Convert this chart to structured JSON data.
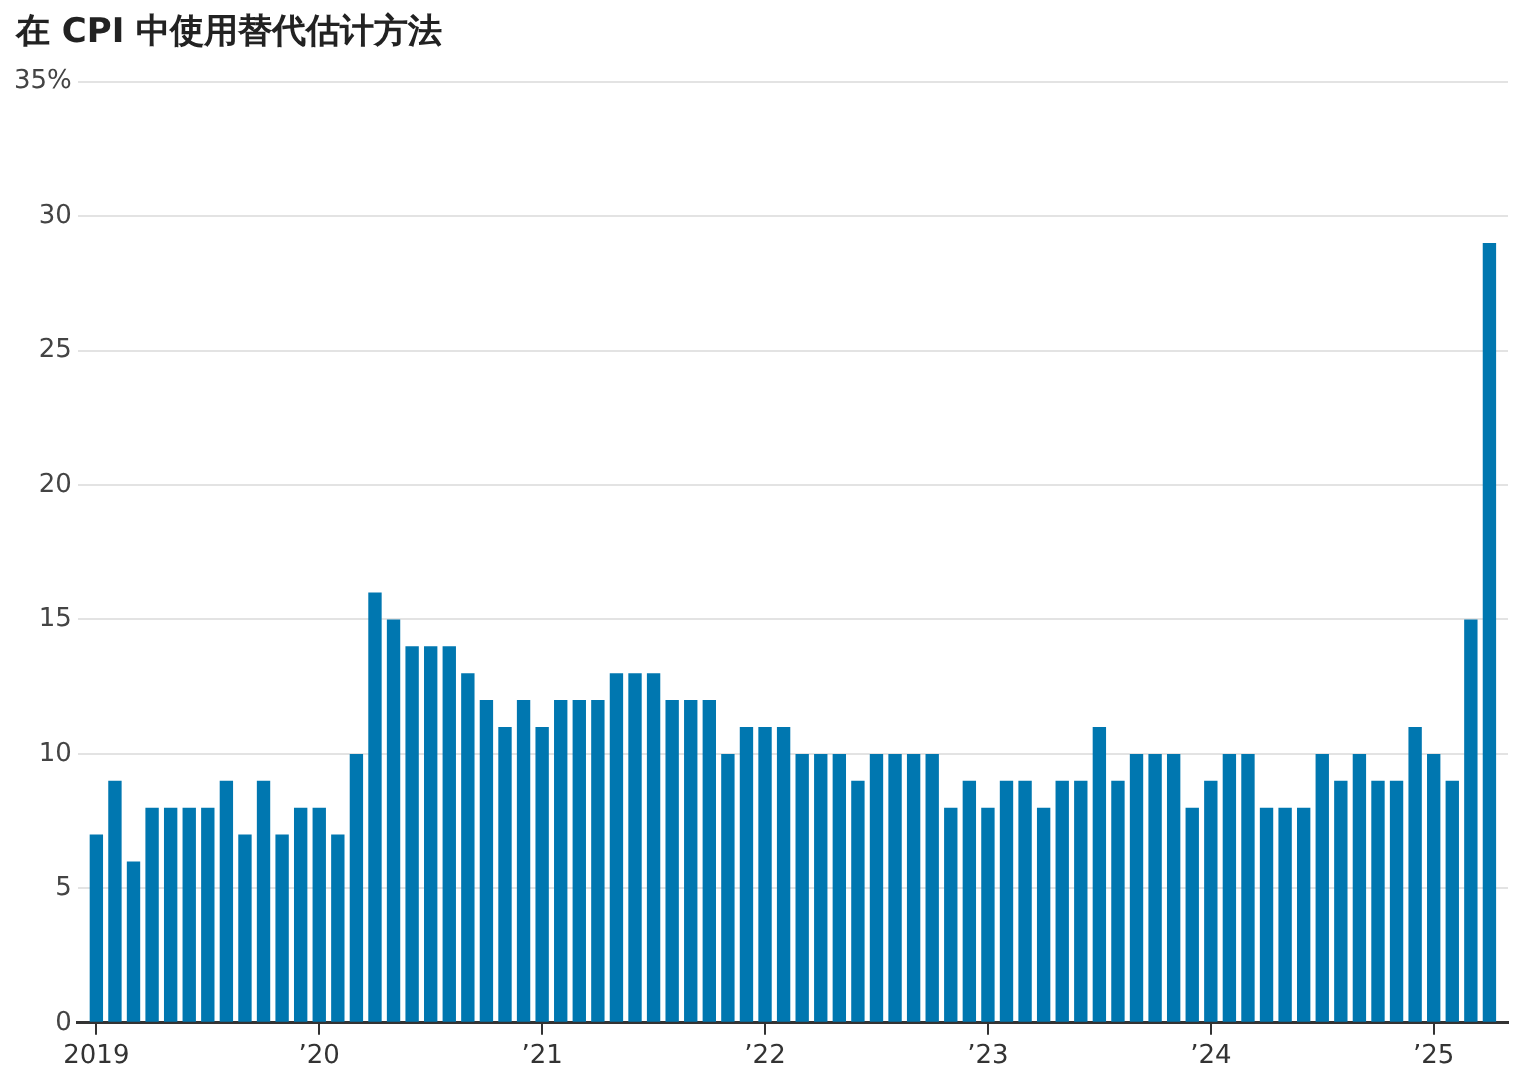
{
  "chart_data": {
    "type": "bar",
    "title": "在 CPI 中使用替代估计方法",
    "x": [
      "2019-01",
      "2019-02",
      "2019-03",
      "2019-04",
      "2019-05",
      "2019-06",
      "2019-07",
      "2019-08",
      "2019-09",
      "2019-10",
      "2019-11",
      "2019-12",
      "2020-01",
      "2020-02",
      "2020-03",
      "2020-04",
      "2020-05",
      "2020-06",
      "2020-07",
      "2020-08",
      "2020-09",
      "2020-10",
      "2020-11",
      "2020-12",
      "2021-01",
      "2021-02",
      "2021-03",
      "2021-04",
      "2021-05",
      "2021-06",
      "2021-07",
      "2021-08",
      "2021-09",
      "2021-10",
      "2021-11",
      "2021-12",
      "2022-01",
      "2022-02",
      "2022-03",
      "2022-04",
      "2022-05",
      "2022-06",
      "2022-07",
      "2022-08",
      "2022-09",
      "2022-10",
      "2022-11",
      "2022-12",
      "2023-01",
      "2023-02",
      "2023-03",
      "2023-04",
      "2023-05",
      "2023-06",
      "2023-07",
      "2023-08",
      "2023-09",
      "2023-10",
      "2023-11",
      "2023-12",
      "2024-01",
      "2024-02",
      "2024-03",
      "2024-04",
      "2024-05",
      "2024-06",
      "2024-07",
      "2024-08",
      "2024-09",
      "2024-10",
      "2024-11",
      "2024-12",
      "2025-01",
      "2025-02",
      "2025-03",
      "2025-04"
    ],
    "values": [
      7,
      9,
      6,
      8,
      8,
      8,
      8,
      9,
      7,
      9,
      7,
      8,
      8,
      7,
      10,
      16,
      15,
      14,
      14,
      14,
      13,
      12,
      11,
      12,
      11,
      12,
      12,
      12,
      13,
      13,
      13,
      12,
      12,
      12,
      10,
      11,
      11,
      11,
      10,
      10,
      10,
      9,
      10,
      10,
      10,
      10,
      8,
      9,
      8,
      9,
      9,
      8,
      9,
      9,
      11,
      9,
      10,
      10,
      10,
      8,
      9,
      10,
      10,
      8,
      8,
      8,
      10,
      9,
      10,
      9,
      9,
      11,
      10,
      9,
      15,
      29
    ],
    "color": "#0077b0",
    "xlim": [
      "2018-12",
      "2025-05"
    ],
    "xticks": [
      {
        "value": "2019-01",
        "label": "2019"
      },
      {
        "value": "2020-01",
        "label": "’20"
      },
      {
        "value": "2021-01",
        "label": "’21"
      },
      {
        "value": "2022-01",
        "label": "’22"
      },
      {
        "value": "2023-01",
        "label": "’23"
      },
      {
        "value": "2024-01",
        "label": "’24"
      },
      {
        "value": "2025-01",
        "label": "’25"
      }
    ],
    "ylim": [
      0,
      35
    ],
    "yticks": [
      0,
      5,
      10,
      15,
      20,
      25,
      30,
      {
        "value": 35,
        "label": "35%"
      }
    ],
    "grid": "y"
  }
}
